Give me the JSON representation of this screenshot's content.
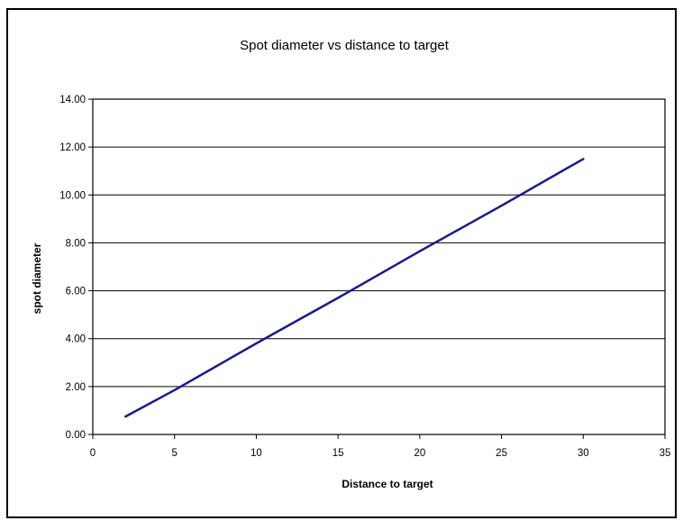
{
  "chart_data": {
    "type": "line",
    "title": "Spot diameter vs distance to target",
    "xlabel": "Distance to target",
    "ylabel": "spot diameter",
    "xlim": [
      0,
      35
    ],
    "ylim": [
      0,
      14
    ],
    "x_ticks": [
      "0",
      "5",
      "10",
      "15",
      "20",
      "25",
      "30",
      "35"
    ],
    "y_ticks": [
      "0.00",
      "2.00",
      "4.00",
      "6.00",
      "8.00",
      "10.00",
      "12.00",
      "14.00"
    ],
    "horizontal_grid": true,
    "vertical_grid": false,
    "legend": "none",
    "series": [
      {
        "color": "#1a1a8c",
        "x": [
          2,
          5,
          10,
          15,
          20,
          25,
          30
        ],
        "y": [
          0.75,
          1.85,
          3.8,
          5.7,
          7.65,
          9.55,
          11.5
        ]
      }
    ]
  }
}
